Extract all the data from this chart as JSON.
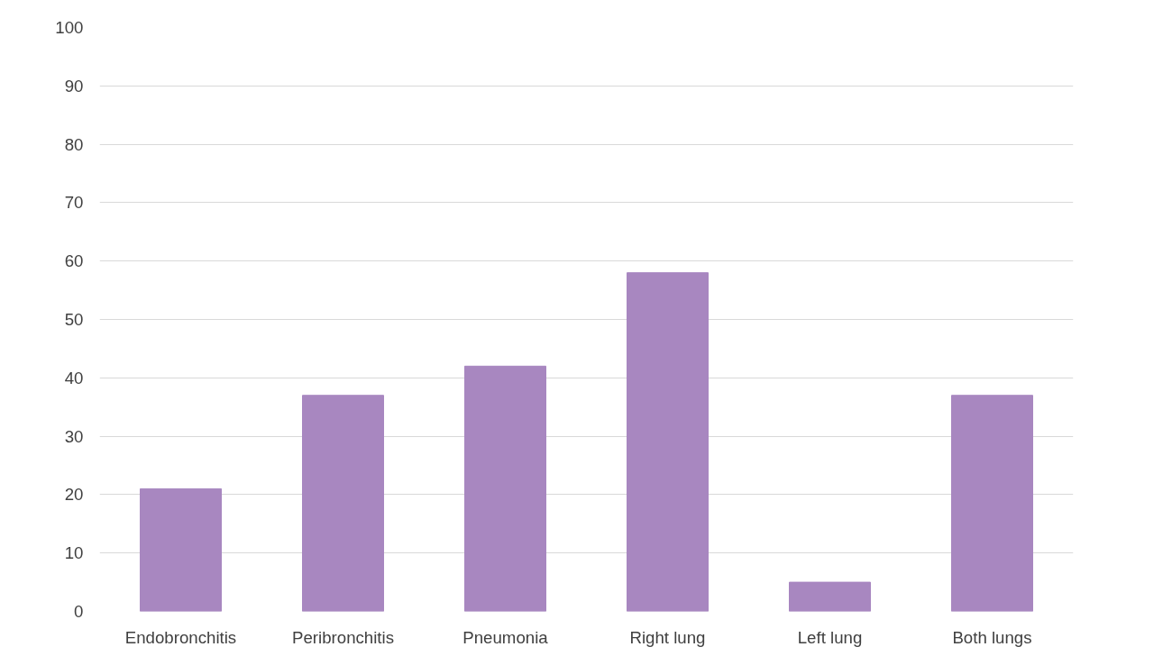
{
  "chart_data": {
    "type": "bar",
    "categories": [
      "Endobronchitis",
      "Peribronchitis",
      "Pneumonia",
      "Right lung",
      "Left lung",
      "Both lungs"
    ],
    "values": [
      21,
      37,
      42,
      58,
      5,
      37
    ],
    "color": "#a887c0",
    "ylim": [
      0,
      100
    ],
    "yticks": [
      0,
      10,
      20,
      30,
      40,
      50,
      60,
      70,
      80,
      90,
      100
    ],
    "grid": "y"
  }
}
